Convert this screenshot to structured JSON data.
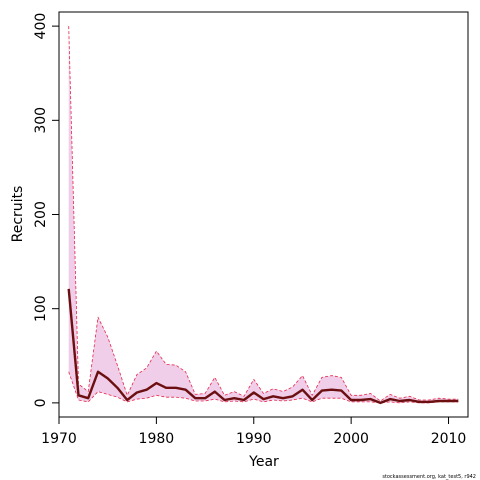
{
  "chart_data": {
    "type": "line",
    "xlabel": "Year",
    "ylabel": "Recruits",
    "xlim": [
      1970,
      2012
    ],
    "ylim": [
      -15,
      415
    ],
    "x_ticks": [
      1970,
      1980,
      1990,
      2000,
      2010
    ],
    "y_ticks": [
      0,
      100,
      200,
      300,
      400
    ],
    "x": [
      1971,
      1972,
      1973,
      1974,
      1975,
      1976,
      1977,
      1978,
      1979,
      1980,
      1981,
      1982,
      1983,
      1984,
      1985,
      1986,
      1987,
      1988,
      1989,
      1990,
      1991,
      1992,
      1993,
      1994,
      1995,
      1996,
      1997,
      1998,
      1999,
      2000,
      2001,
      2002,
      2003,
      2004,
      2005,
      2006,
      2007,
      2008,
      2009,
      2010,
      2011
    ],
    "series": [
      {
        "role": "estimate",
        "values": [
          121,
          8,
          5,
          33,
          26,
          16,
          3,
          11,
          14,
          21,
          16,
          16,
          14,
          5,
          5,
          12,
          3,
          5,
          3,
          11,
          4,
          7,
          5,
          7,
          14,
          3,
          13,
          14,
          13,
          3,
          3,
          4,
          0,
          4,
          2,
          3,
          1,
          1,
          2,
          2,
          2
        ]
      },
      {
        "role": "upper",
        "values": [
          400,
          20,
          12,
          91,
          70,
          40,
          8,
          30,
          37,
          55,
          41,
          40,
          33,
          9,
          10,
          27,
          8,
          12,
          7,
          25,
          10,
          15,
          12,
          17,
          29,
          8,
          27,
          29,
          27,
          8,
          8,
          10,
          2,
          9,
          5,
          7,
          3,
          3,
          5,
          4,
          4
        ]
      },
      {
        "role": "lower",
        "values": [
          33,
          3,
          1,
          12,
          9,
          6,
          1,
          4,
          5,
          8,
          6,
          6,
          5,
          2,
          2,
          4,
          1,
          2,
          1,
          4,
          1,
          3,
          2,
          3,
          5,
          1,
          5,
          5,
          5,
          1,
          1,
          1,
          0,
          1,
          0,
          1,
          0,
          0,
          1,
          1,
          1
        ]
      }
    ],
    "colors": {
      "estimate": "#6b0f10",
      "band_fill": "#f0cde8",
      "band_edge": "#e8264a"
    }
  },
  "footnote": "stockassessment.org, kat_test5, r942"
}
